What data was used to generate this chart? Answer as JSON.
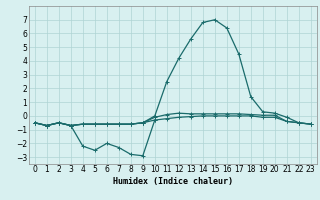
{
  "xlabel": "Humidex (Indice chaleur)",
  "bg_color": "#d8f0f0",
  "grid_color": "#afd4d4",
  "line_color": "#1a6b6b",
  "x_values": [
    0,
    1,
    2,
    3,
    4,
    5,
    6,
    7,
    8,
    9,
    10,
    11,
    12,
    13,
    14,
    15,
    16,
    17,
    18,
    19,
    20,
    21,
    22,
    23
  ],
  "series1": [
    -0.5,
    -0.7,
    -0.5,
    -0.7,
    -0.6,
    -0.6,
    -0.6,
    -0.6,
    -0.6,
    -0.5,
    -0.3,
    -0.2,
    -0.1,
    -0.05,
    0.0,
    0.0,
    0.0,
    0.0,
    0.0,
    -0.1,
    -0.1,
    -0.4,
    -0.5,
    -0.6
  ],
  "series2_x": [
    0,
    1,
    2,
    3,
    4,
    5,
    6,
    7,
    8,
    9,
    10
  ],
  "series2_y": [
    -0.5,
    -0.7,
    -0.5,
    -0.7,
    -2.2,
    -2.5,
    -2.0,
    -2.3,
    -2.8,
    -2.9,
    -0.3
  ],
  "series3": [
    -0.5,
    -0.7,
    -0.5,
    -0.7,
    -0.6,
    -0.6,
    -0.6,
    -0.6,
    -0.6,
    -0.5,
    -0.1,
    0.1,
    0.2,
    0.15,
    0.15,
    0.15,
    0.15,
    0.15,
    0.1,
    0.05,
    0.05,
    -0.4,
    -0.5,
    -0.6
  ],
  "series4": [
    -0.5,
    -0.7,
    -0.5,
    -0.7,
    -0.6,
    -0.6,
    -0.6,
    -0.6,
    -0.6,
    -0.5,
    0.0,
    2.5,
    4.2,
    5.6,
    6.8,
    7.0,
    6.4,
    4.5,
    1.4,
    0.3,
    0.2,
    -0.1,
    -0.5,
    -0.6
  ],
  "ylim": [
    -3.5,
    8.0
  ],
  "xlim": [
    -0.5,
    23.5
  ],
  "yticks": [
    -3,
    -2,
    -1,
    0,
    1,
    2,
    3,
    4,
    5,
    6,
    7
  ],
  "xticks": [
    0,
    1,
    2,
    3,
    4,
    5,
    6,
    7,
    8,
    9,
    10,
    11,
    12,
    13,
    14,
    15,
    16,
    17,
    18,
    19,
    20,
    21,
    22,
    23
  ],
  "xlabel_fontsize": 6.0,
  "tick_fontsize": 5.5
}
